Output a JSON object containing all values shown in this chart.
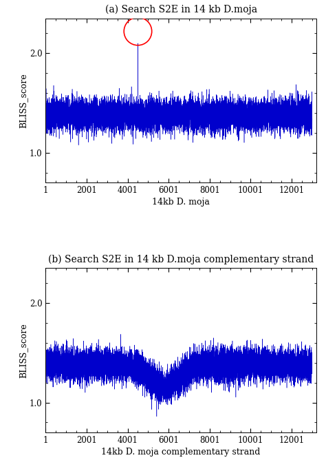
{
  "title_a": "(a) Search S2E in 14 kb D.moja",
  "title_b": "(b) Search S2E in 14 kb D.moja complementary strand",
  "xlabel_a": "14kb D. moja",
  "xlabel_b": "14kb D. moja complementary strand",
  "ylabel": "BLISS_score",
  "xlim": [
    1,
    13200
  ],
  "ylim_a": [
    0.7,
    2.35
  ],
  "ylim_b": [
    0.7,
    2.35
  ],
  "yticks": [
    1.0,
    2.0
  ],
  "xticks": [
    1,
    2001,
    4001,
    6001,
    8001,
    10001,
    12001
  ],
  "xticklabels": [
    "1",
    "2001",
    "4001",
    "6001",
    "8001",
    "10001",
    "12001"
  ],
  "line_color": "#0000cc",
  "spike_x": 4500,
  "spike_y": 2.1,
  "circle_color": "red",
  "n_points": 13000,
  "noise_mean_a": 1.38,
  "noise_std_a": 0.08,
  "noise_mean_b": 1.38,
  "noise_std_b": 0.08,
  "bg_color": "#ffffff",
  "title_fontsize": 10,
  "label_fontsize": 9,
  "tick_fontsize": 8.5
}
